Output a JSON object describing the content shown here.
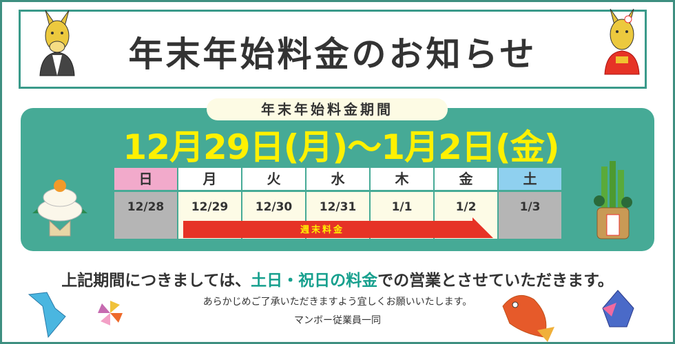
{
  "title": "年末年始料金のお知らせ",
  "period_label": "年末年始料金期間",
  "date_range": "12月29日(月)〜1月2日(金)",
  "calendar": {
    "days": [
      {
        "weekday": "日",
        "date": "12/28",
        "header_color": "#f2aacb",
        "cell_color": "#b5b5b5"
      },
      {
        "weekday": "月",
        "date": "12/29",
        "header_color": "#ffffff",
        "cell_color": "#fdfbe6"
      },
      {
        "weekday": "火",
        "date": "12/30",
        "header_color": "#ffffff",
        "cell_color": "#fdfbe6"
      },
      {
        "weekday": "水",
        "date": "12/31",
        "header_color": "#ffffff",
        "cell_color": "#fdfbe6"
      },
      {
        "weekday": "木",
        "date": "1/1",
        "header_color": "#ffffff",
        "cell_color": "#fdfbe6"
      },
      {
        "weekday": "金",
        "date": "1/2",
        "header_color": "#ffffff",
        "cell_color": "#fdfbe6"
      },
      {
        "weekday": "土",
        "date": "1/3",
        "header_color": "#8fd0ef",
        "cell_color": "#b5b5b5"
      }
    ],
    "arrow_label": "週末料金"
  },
  "notice": {
    "pre": "上記期間につきましては、",
    "highlight": "土日・祝日の料金",
    "post": "での営業とさせていただきます。"
  },
  "sub1": "あらかじめご了承いただきますよう宜しくお願いいたします。",
  "sub2": "マンボー従業員一同",
  "colors": {
    "teal": "#46aa96",
    "yellow": "#fff100",
    "red": "#e63326",
    "border": "#3a9a8a"
  }
}
